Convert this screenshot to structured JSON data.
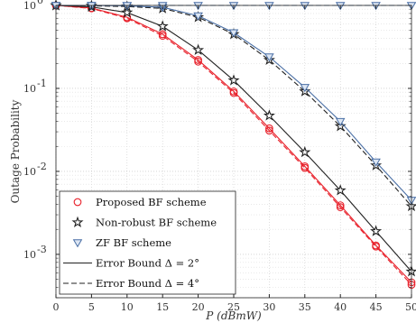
{
  "chart_data": {
    "type": "line",
    "xlabel": "P (dBmW)",
    "ylabel": "Outage Probability",
    "x": [
      0,
      5,
      10,
      15,
      20,
      25,
      30,
      35,
      40,
      45,
      50
    ],
    "xlim": [
      0,
      50
    ],
    "ylim": [
      0.0003,
      1
    ],
    "yscale": "log",
    "grid": true,
    "legend_position": "bottom-left",
    "x_ticks": [
      "0",
      "5",
      "10",
      "15",
      "20",
      "25",
      "30",
      "35",
      "40",
      "45",
      "50"
    ],
    "y_ticks": [
      {
        "value": 1,
        "base": "10",
        "exp": "0"
      },
      {
        "value": 0.1,
        "base": "10",
        "exp": "-1"
      },
      {
        "value": 0.01,
        "base": "10",
        "exp": "-2"
      },
      {
        "value": 0.001,
        "base": "10",
        "exp": "-3"
      }
    ],
    "legend": [
      {
        "label": "Proposed BF scheme",
        "marker": "circle",
        "color": "#e8202a"
      },
      {
        "label": "Non-robust BF scheme",
        "marker": "star",
        "color": "#222222"
      },
      {
        "label": "ZF BF scheme",
        "marker": "triangle-down",
        "color": "#4a6fa5"
      },
      {
        "label": "Error Bound Δ = 2°",
        "line": "solid",
        "color": "#222222"
      },
      {
        "label": "Error Bound Δ = 4°",
        "line": "dashed",
        "color": "#222222"
      }
    ],
    "series": [
      {
        "scheme": "Proposed BF scheme",
        "bound": "Δ = 2°",
        "marker": "circle",
        "dash": "solid",
        "color": "#e8202a",
        "values": [
          1.0,
          0.93,
          0.72,
          0.45,
          0.22,
          0.092,
          0.033,
          0.0115,
          0.0039,
          0.00128,
          0.00046
        ]
      },
      {
        "scheme": "Proposed BF scheme",
        "bound": "Δ = 4°",
        "marker": "circle",
        "dash": "dashed",
        "color": "#e8202a",
        "values": [
          1.0,
          0.92,
          0.7,
          0.43,
          0.21,
          0.088,
          0.031,
          0.011,
          0.0037,
          0.00124,
          0.00043
        ]
      },
      {
        "scheme": "Non-robust BF scheme",
        "bound": "Δ = 2°",
        "marker": "star",
        "dash": "solid",
        "color": "#222222",
        "values": [
          1.0,
          0.96,
          0.82,
          0.56,
          0.29,
          0.125,
          0.047,
          0.017,
          0.0059,
          0.0019,
          0.00062
        ]
      },
      {
        "scheme": "Non-robust BF scheme",
        "bound": "Δ = 4°",
        "marker": "star",
        "dash": "dashed",
        "color": "#222222",
        "values": [
          1.0,
          0.99,
          0.97,
          0.92,
          0.72,
          0.45,
          0.22,
          0.092,
          0.035,
          0.0118,
          0.0038
        ]
      },
      {
        "scheme": "ZF BF scheme",
        "bound": "Δ = 2°",
        "marker": "triangle-down",
        "dash": "solid",
        "color": "#4a6fa5",
        "values": [
          1.0,
          1.0,
          0.99,
          0.95,
          0.75,
          0.47,
          0.24,
          0.103,
          0.04,
          0.013,
          0.0045
        ]
      },
      {
        "scheme": "ZF BF scheme",
        "bound": "Δ = 4°",
        "marker": "triangle-down",
        "dash": "dashed",
        "color": "#4a6fa5",
        "values": [
          1.0,
          1.0,
          1.0,
          1.0,
          1.0,
          1.0,
          1.0,
          1.0,
          1.0,
          1.0,
          1.0
        ]
      }
    ]
  }
}
